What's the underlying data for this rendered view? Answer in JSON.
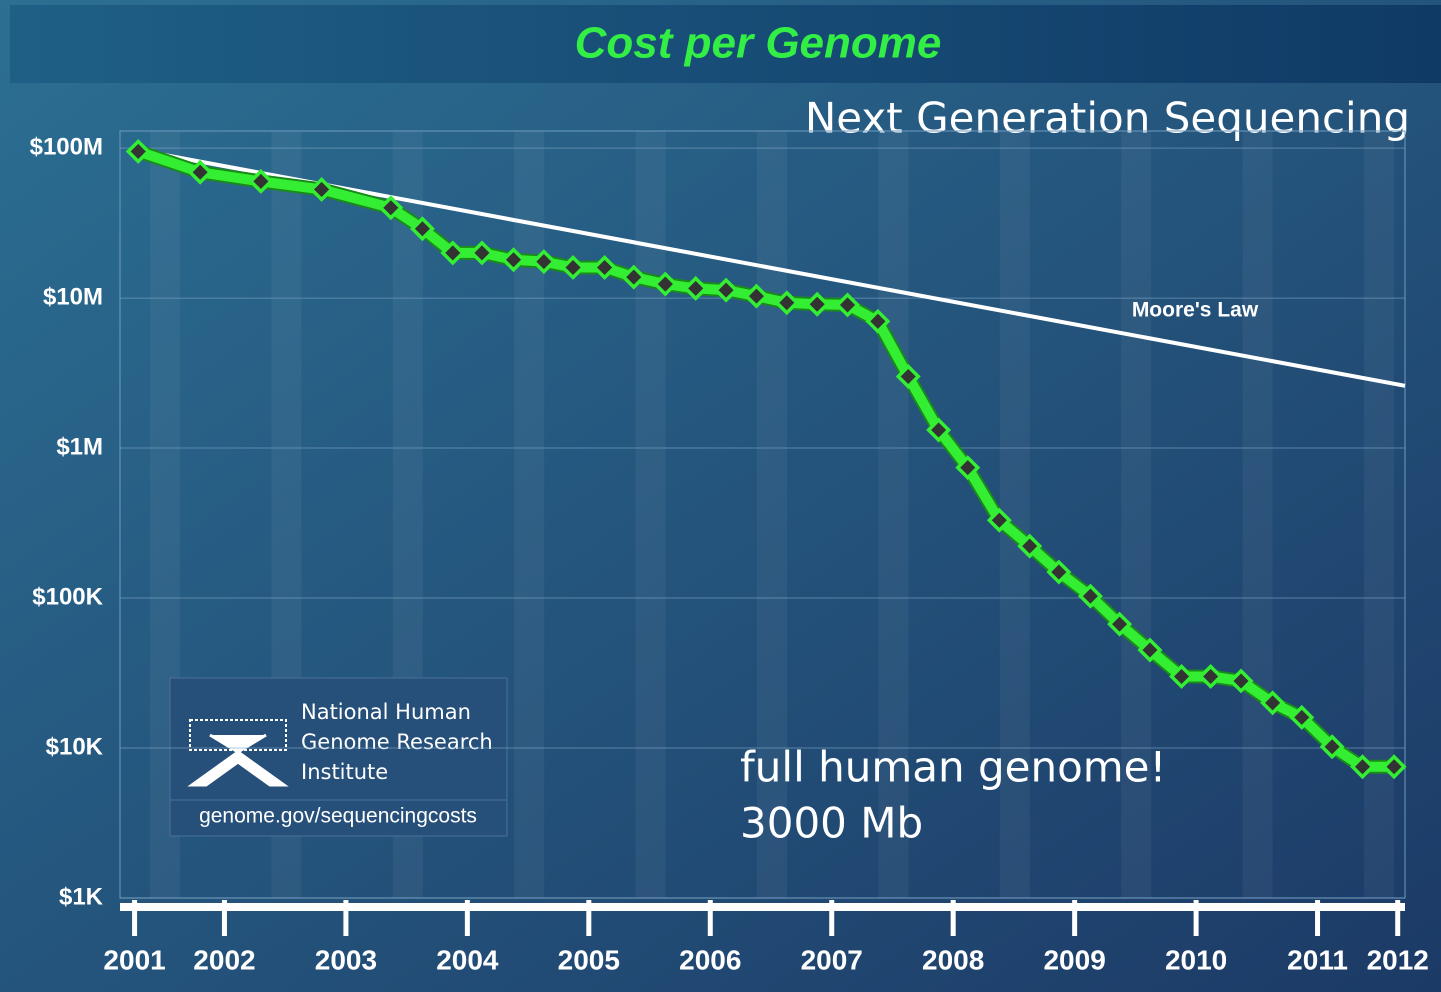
{
  "chart_data": {
    "type": "line",
    "title": "Cost per Genome",
    "subtitle": "Next Generation Sequencing",
    "annotations": [
      "full human genome!",
      "3000 Mb"
    ],
    "logo": {
      "lines": [
        "National Human",
        "Genome Research",
        "Institute"
      ],
      "url": "genome.gov/sequencingcosts"
    },
    "log_scale": true,
    "grid": true,
    "xlim": [
      2001.14,
      2011.72
    ],
    "xticks": [
      {
        "value": 2001.26,
        "label": "2001"
      },
      2002,
      2003,
      2004,
      2005,
      2006,
      2007,
      2008,
      2009,
      2010,
      2011,
      {
        "value": 2011.66,
        "label": "2012"
      }
    ],
    "ylim": [
      1000,
      130000000
    ],
    "yticks": [
      {
        "value": 1000,
        "label": "$1K"
      },
      {
        "value": 10000,
        "label": "$10K"
      },
      {
        "value": 100000,
        "label": "$100K"
      },
      {
        "value": 1000000,
        "label": "$1M"
      },
      {
        "value": 10000000,
        "label": "$10M"
      },
      {
        "value": 100000000,
        "label": "$100M"
      }
    ],
    "series": [
      {
        "name": "Cost per Genome",
        "color": "#33ee33",
        "markers": true,
        "x": [
          2001.29,
          2001.8,
          2002.3,
          2002.8,
          2003.37,
          2003.63,
          2003.88,
          2004.12,
          2004.38,
          2004.63,
          2004.87,
          2005.13,
          2005.37,
          2005.63,
          2005.88,
          2006.13,
          2006.38,
          2006.63,
          2006.88,
          2007.13,
          2007.38,
          2007.63,
          2007.88,
          2008.12,
          2008.38,
          2008.63,
          2008.87,
          2009.13,
          2009.37,
          2009.62,
          2009.88,
          2010.12,
          2010.37,
          2010.63,
          2010.87,
          2011.12,
          2011.37,
          2011.63
        ],
        "values": [
          95000000,
          69000000,
          60000000,
          53000000,
          40000000,
          29000000,
          20000000,
          20000000,
          18000000,
          17500000,
          16000000,
          16000000,
          13800000,
          12400000,
          11600000,
          11300000,
          10300000,
          9300000,
          9100000,
          9000000,
          7000000,
          3000000,
          1320000,
          740000,
          330000,
          222000,
          149000,
          103000,
          67000,
          45000,
          30000,
          30000,
          28000,
          20000,
          16000,
          10200,
          7500,
          7500
        ]
      },
      {
        "name": "Moore's Law",
        "color": "#ffffff",
        "markers": false,
        "x": [
          2001.29,
          2011.72
        ],
        "values": [
          97000000,
          2600000
        ]
      }
    ]
  }
}
